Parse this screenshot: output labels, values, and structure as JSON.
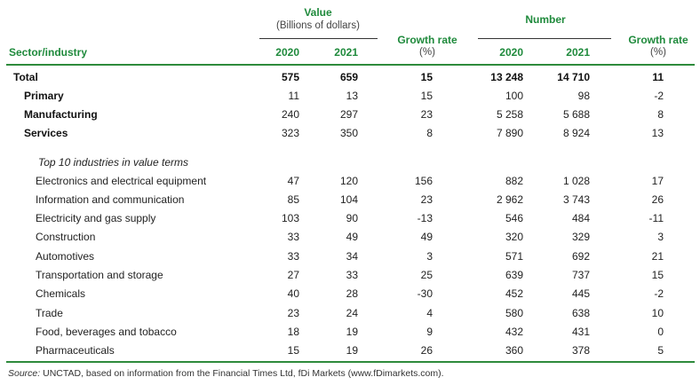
{
  "header": {
    "value_group": "Value",
    "value_unit": "(Billions of dollars)",
    "number_group": "Number",
    "sector_label": "Sector/industry",
    "y2020": "2020",
    "y2021": "2021",
    "growth_label": "Growth rate",
    "growth_unit": "(%)"
  },
  "summary_rows": [
    {
      "label": "Total",
      "v2020": "575",
      "v2021": "659",
      "vg": "15",
      "n2020": "13 248",
      "n2021": "14 710",
      "ng": "11"
    },
    {
      "label": "Primary",
      "v2020": "11",
      "v2021": "13",
      "vg": "15",
      "n2020": "100",
      "n2021": "98",
      "ng": "-2"
    },
    {
      "label": "Manufacturing",
      "v2020": "240",
      "v2021": "297",
      "vg": "23",
      "n2020": "5 258",
      "n2021": "5 688",
      "ng": "8"
    },
    {
      "label": "Services",
      "v2020": "323",
      "v2021": "350",
      "vg": "8",
      "n2020": "7 890",
      "n2021": "8 924",
      "ng": "13"
    }
  ],
  "section_title": "Top 10 industries in value terms",
  "industry_rows": [
    {
      "label": "Electronics and electrical equipment",
      "v2020": "47",
      "v2021": "120",
      "vg": "156",
      "n2020": "882",
      "n2021": "1 028",
      "ng": "17"
    },
    {
      "label": "Information and communication",
      "v2020": "85",
      "v2021": "104",
      "vg": "23",
      "n2020": "2 962",
      "n2021": "3 743",
      "ng": "26"
    },
    {
      "label": "Electricity and gas supply",
      "v2020": "103",
      "v2021": "90",
      "vg": "-13",
      "n2020": "546",
      "n2021": "484",
      "ng": "-11"
    },
    {
      "label": "Construction",
      "v2020": "33",
      "v2021": "49",
      "vg": "49",
      "n2020": "320",
      "n2021": "329",
      "ng": "3"
    },
    {
      "label": "Automotives",
      "v2020": "33",
      "v2021": "34",
      "vg": "3",
      "n2020": "571",
      "n2021": "692",
      "ng": "21"
    },
    {
      "label": "Transportation and storage",
      "v2020": "27",
      "v2021": "33",
      "vg": "25",
      "n2020": "639",
      "n2021": "737",
      "ng": "15"
    },
    {
      "label": "Chemicals",
      "v2020": "40",
      "v2021": "28",
      "vg": "-30",
      "n2020": "452",
      "n2021": "445",
      "ng": "-2"
    },
    {
      "label": "Trade",
      "v2020": "23",
      "v2021": "24",
      "vg": "4",
      "n2020": "580",
      "n2021": "638",
      "ng": "10"
    },
    {
      "label": "Food, beverages and tobacco",
      "v2020": "18",
      "v2021": "19",
      "vg": "9",
      "n2020": "432",
      "n2021": "431",
      "ng": "0"
    },
    {
      "label": "Pharmaceuticals",
      "v2020": "15",
      "v2021": "19",
      "vg": "26",
      "n2020": "360",
      "n2021": "378",
      "ng": "5"
    }
  ],
  "source": {
    "prefix": "Source:",
    "text": " UNCTAD, based on information from the Financial Times Ltd, fDi Markets (www.fDimarkets.com)."
  }
}
